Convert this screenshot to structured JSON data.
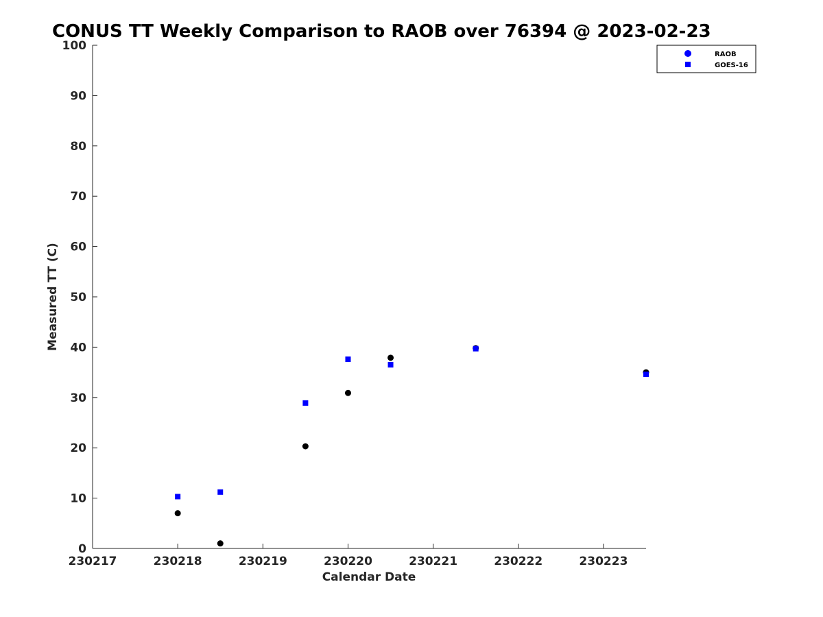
{
  "chart_data": {
    "type": "scatter",
    "title": "CONUS TT Weekly Comparison to RAOB over 76394 @ 2023-02-23",
    "xlabel": "Calendar Date",
    "ylabel": "Measured TT (C)",
    "xlim": [
      230217,
      230223.5
    ],
    "ylim": [
      0,
      100
    ],
    "x_ticks": [
      230217,
      230218,
      230219,
      230220,
      230221,
      230222,
      230223
    ],
    "x_tick_labels": [
      "230217",
      "230218",
      "230219",
      "230220",
      "230221",
      "230222",
      "230223"
    ],
    "y_ticks": [
      0,
      10,
      20,
      30,
      40,
      50,
      60,
      70,
      80,
      90,
      100
    ],
    "y_tick_labels": [
      "0",
      "10",
      "20",
      "30",
      "40",
      "50",
      "60",
      "70",
      "80",
      "90",
      "100"
    ],
    "grid": false,
    "legend_position": "top-right",
    "series": [
      {
        "name": "RAOB",
        "marker": "circle",
        "legend_color": "#0000ff",
        "color": "#000000",
        "x": [
          230218.0,
          230218.5,
          230219.5,
          230220.0,
          230220.5,
          230221.5,
          230223.5
        ],
        "y": [
          7.0,
          1.0,
          20.3,
          30.9,
          37.9,
          39.8,
          35.0
        ]
      },
      {
        "name": "GOES-16",
        "marker": "square",
        "legend_color": "#0000ff",
        "color": "#0000ff",
        "x": [
          230218.0,
          230218.5,
          230219.5,
          230220.0,
          230220.5,
          230221.5,
          230223.5
        ],
        "y": [
          10.3,
          11.2,
          28.9,
          37.6,
          36.5,
          39.7,
          34.6
        ]
      }
    ]
  }
}
